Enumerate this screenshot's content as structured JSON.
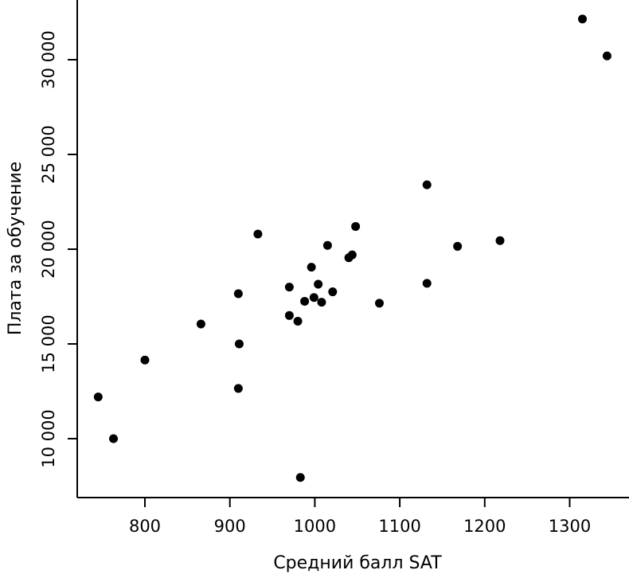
{
  "chart_data": {
    "type": "scatter",
    "title": "",
    "xlabel": "Средний балл SAT",
    "ylabel": "Плата за обучение",
    "xlim": [
      725,
      1350
    ],
    "ylim": [
      7000,
      33000
    ],
    "x_ticks": [
      800,
      900,
      1000,
      1100,
      1200,
      1300
    ],
    "x_tick_labels": [
      "800",
      "900",
      "1000",
      "1100",
      "1200",
      "1300"
    ],
    "y_ticks": [
      10000,
      15000,
      20000,
      25000,
      30000
    ],
    "y_tick_labels": [
      "10 000",
      "15 000",
      "20 000",
      "25 000",
      "30 000"
    ],
    "grid": false,
    "points": [
      {
        "x": 745,
        "y": 12200
      },
      {
        "x": 763,
        "y": 10000
      },
      {
        "x": 800,
        "y": 14150
      },
      {
        "x": 866,
        "y": 16050
      },
      {
        "x": 910,
        "y": 17650
      },
      {
        "x": 911,
        "y": 15000
      },
      {
        "x": 910,
        "y": 12650
      },
      {
        "x": 933,
        "y": 20800
      },
      {
        "x": 970,
        "y": 18000
      },
      {
        "x": 970,
        "y": 16500
      },
      {
        "x": 980,
        "y": 16200
      },
      {
        "x": 983,
        "y": 7950
      },
      {
        "x": 988,
        "y": 17250
      },
      {
        "x": 996,
        "y": 19050
      },
      {
        "x": 999,
        "y": 17450
      },
      {
        "x": 1004,
        "y": 18150
      },
      {
        "x": 1008,
        "y": 17200
      },
      {
        "x": 1015,
        "y": 20200
      },
      {
        "x": 1021,
        "y": 17750
      },
      {
        "x": 1040,
        "y": 19550
      },
      {
        "x": 1044,
        "y": 19700
      },
      {
        "x": 1048,
        "y": 21200
      },
      {
        "x": 1076,
        "y": 17150
      },
      {
        "x": 1132,
        "y": 23400
      },
      {
        "x": 1132,
        "y": 18200
      },
      {
        "x": 1168,
        "y": 20150
      },
      {
        "x": 1218,
        "y": 20450
      },
      {
        "x": 1315,
        "y": 32150
      },
      {
        "x": 1344,
        "y": 30200
      }
    ]
  }
}
